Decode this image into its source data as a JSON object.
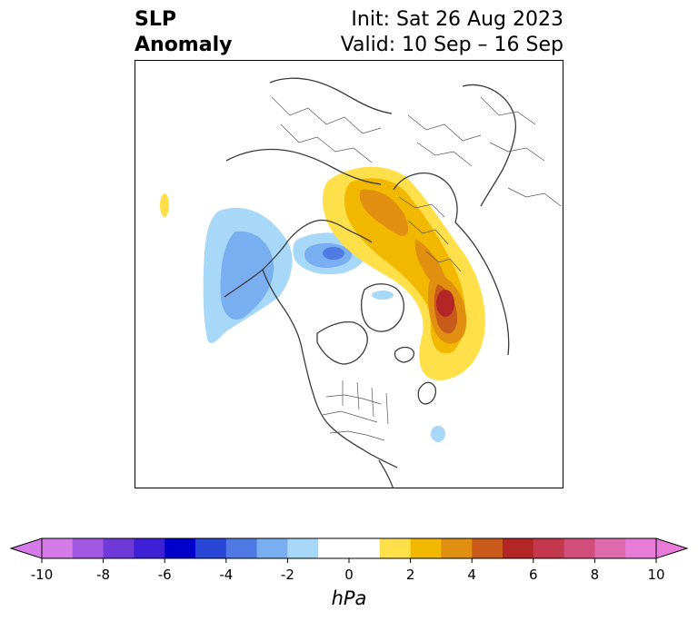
{
  "header": {
    "title_line1": "SLP",
    "title_line2": "Anomaly",
    "init_text": "Init: Sat 26 Aug 2023",
    "valid_text": "Valid: 10 Sep – 16 Sep"
  },
  "map": {
    "projection": "polar stereographic (North Pole)",
    "features": [
      {
        "name": "negative-anomaly-bering-alaska",
        "sign": "negative",
        "peak_hpa": -4
      },
      {
        "name": "negative-anomaly-laptev-sea",
        "sign": "negative",
        "peak_hpa": -4
      },
      {
        "name": "positive-anomaly-siberia",
        "sign": "positive",
        "peak_hpa": 4
      },
      {
        "name": "positive-anomaly-north-atlantic",
        "sign": "positive",
        "peak_hpa": 6
      },
      {
        "name": "negative-anomaly-atlantic-small",
        "sign": "negative",
        "peak_hpa": -2
      }
    ]
  },
  "colorbar": {
    "units": "hPa",
    "tick_labels": [
      "-10",
      "-8",
      "-6",
      "-4",
      "-2",
      "0",
      "2",
      "4",
      "6",
      "8",
      "10"
    ],
    "colors": [
      "#d57be8",
      "#a258e2",
      "#6f3ad8",
      "#3e20d6",
      "#0000cc",
      "#2847d6",
      "#4f7ae3",
      "#79aef0",
      "#a8d8f8",
      "#ffffff",
      "#ffffff",
      "#ffe04a",
      "#f2b800",
      "#e08f10",
      "#c85a1a",
      "#b42525",
      "#c4384e",
      "#d14e7a",
      "#df6aad",
      "#e87ad8"
    ],
    "extend_low_color": "#d57be8",
    "extend_high_color": "#e87ad8"
  }
}
